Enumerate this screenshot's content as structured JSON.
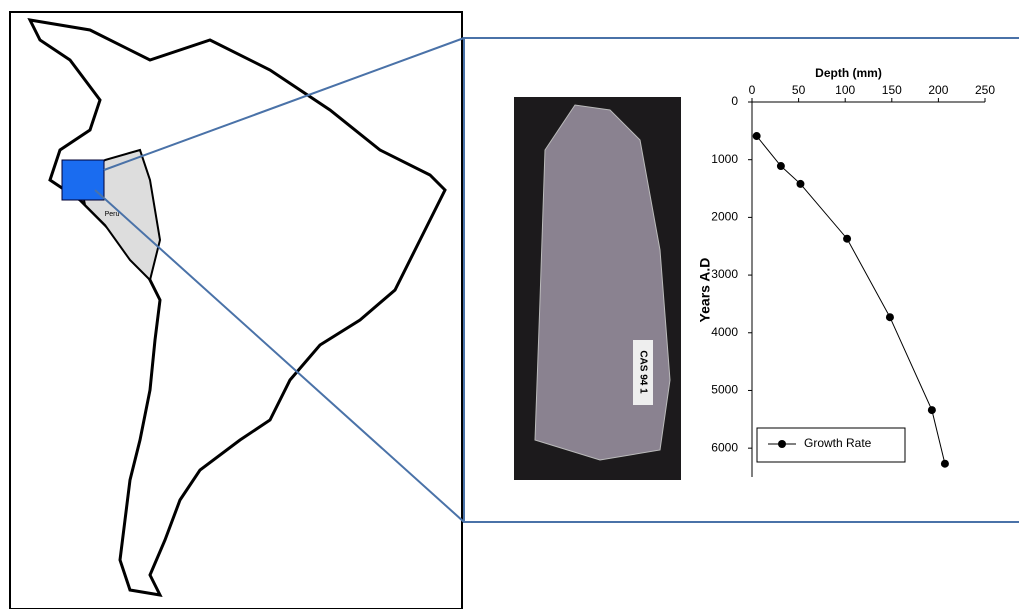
{
  "map": {
    "label": "Peru"
  },
  "photo": {
    "label": "CAS 94 1"
  },
  "chart_data": {
    "type": "line",
    "x_label": "Depth (mm)",
    "y_label": "Years A.D",
    "x": [
      5,
      31,
      52,
      102,
      148,
      193,
      207
    ],
    "series": [
      {
        "name": "Growth Rate",
        "color": "#000000",
        "values": [
          590,
          1110,
          1420,
          2370,
          3730,
          5340,
          6270
        ]
      }
    ],
    "xlim": [
      0,
      250
    ],
    "xticks": [
      0,
      50,
      100,
      150,
      200,
      250
    ],
    "ylim": [
      0,
      6500
    ],
    "yticks": [
      0,
      1000,
      2000,
      3000,
      4000,
      5000,
      6000
    ],
    "y_inverted": true,
    "x_axis_top": true,
    "legend": "lower-left"
  }
}
